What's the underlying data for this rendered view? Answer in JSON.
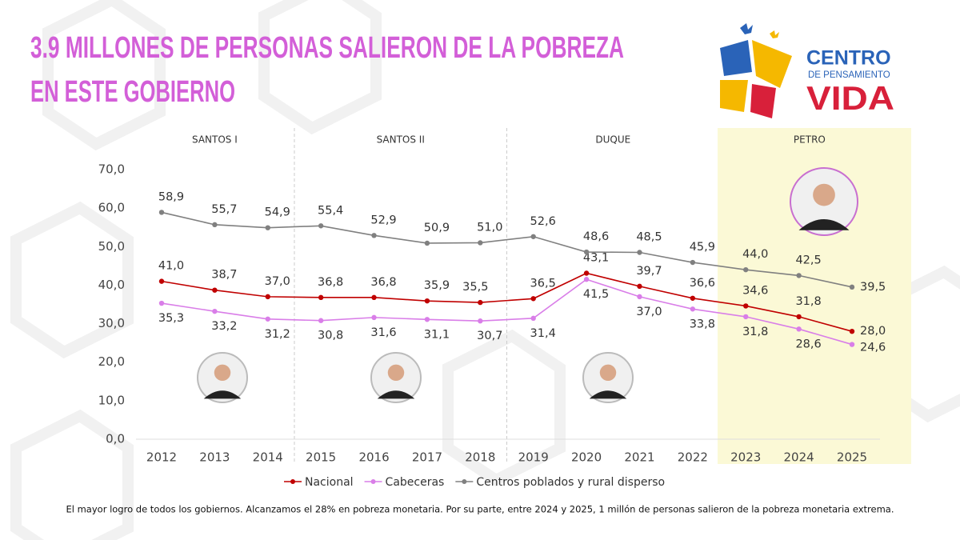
{
  "chart_data": {
    "type": "line",
    "title": [
      "3.9 MILLONES DE PERSONAS SALIERON DE LA POBREZA",
      "EN ESTE GOBIERNO"
    ],
    "logo": [
      "CENTRO",
      "DE PENSAMIENTO",
      "VIDA"
    ],
    "periods": [
      "SANTOS I",
      "SANTOS II",
      "DUQUE",
      "PETRO"
    ],
    "categories": [
      "2012",
      "2013",
      "2014",
      "2015",
      "2016",
      "2017",
      "2018",
      "2019",
      "2020",
      "2021",
      "2022",
      "2023",
      "2024",
      "2025"
    ],
    "ylim": [
      0,
      70
    ],
    "yticks": [
      {
        "value": 0,
        "label": "0,0"
      },
      {
        "value": 10,
        "label": "10,0"
      },
      {
        "value": 20,
        "label": "20,0"
      },
      {
        "value": 30,
        "label": "30,0"
      },
      {
        "value": 40,
        "label": "40,0"
      },
      {
        "value": 50,
        "label": "50,0"
      },
      {
        "value": 60,
        "label": "60,0"
      },
      {
        "value": 70,
        "label": "70,0"
      }
    ],
    "series": [
      {
        "name": "Nacional",
        "color": "#c00000",
        "values": [
          41.0,
          38.7,
          37.0,
          36.8,
          36.8,
          35.9,
          35.5,
          36.5,
          43.1,
          39.7,
          36.6,
          34.6,
          31.8,
          28.0
        ],
        "value_labels": [
          "41,0",
          "38,7",
          "37,0",
          "36,8",
          "36,8",
          "35,9",
          "35,5",
          "36,5",
          "43,1",
          "39,7",
          "36,6",
          "34,6",
          "31,8",
          "28,0"
        ]
      },
      {
        "name": "Cabeceras",
        "color": "#d97ee8",
        "values": [
          35.3,
          33.2,
          31.2,
          30.8,
          31.6,
          31.1,
          30.7,
          31.4,
          41.5,
          37.0,
          33.8,
          31.8,
          28.6,
          24.6
        ],
        "value_labels": [
          "35,3",
          "33,2",
          "31,2",
          "30,8",
          "31,6",
          "31,1",
          "30,7",
          "31,4",
          "41,5",
          "37,0",
          "33,8",
          "31,8",
          "28,6",
          "24,6"
        ]
      },
      {
        "name": "Centros poblados y rural disperso",
        "color": "#808080",
        "values": [
          58.9,
          55.7,
          54.9,
          55.4,
          52.9,
          50.9,
          51.0,
          52.6,
          48.6,
          48.5,
          45.9,
          44.0,
          42.5,
          39.5
        ],
        "value_labels": [
          "58,9",
          "55,7",
          "54,9",
          "55,4",
          "52,9",
          "50,9",
          "51,0",
          "52,6",
          "48,6",
          "48,5",
          "45,9",
          "44,0",
          "42,5",
          "39,5"
        ]
      }
    ],
    "note": "El mayor logro de todos los gobiernos. Alcanzamos el 28% en pobreza monetaria. Por su parte,  entre 2024 y 2025, 1 millón de personas salieron de la pobreza monetaria extrema."
  }
}
